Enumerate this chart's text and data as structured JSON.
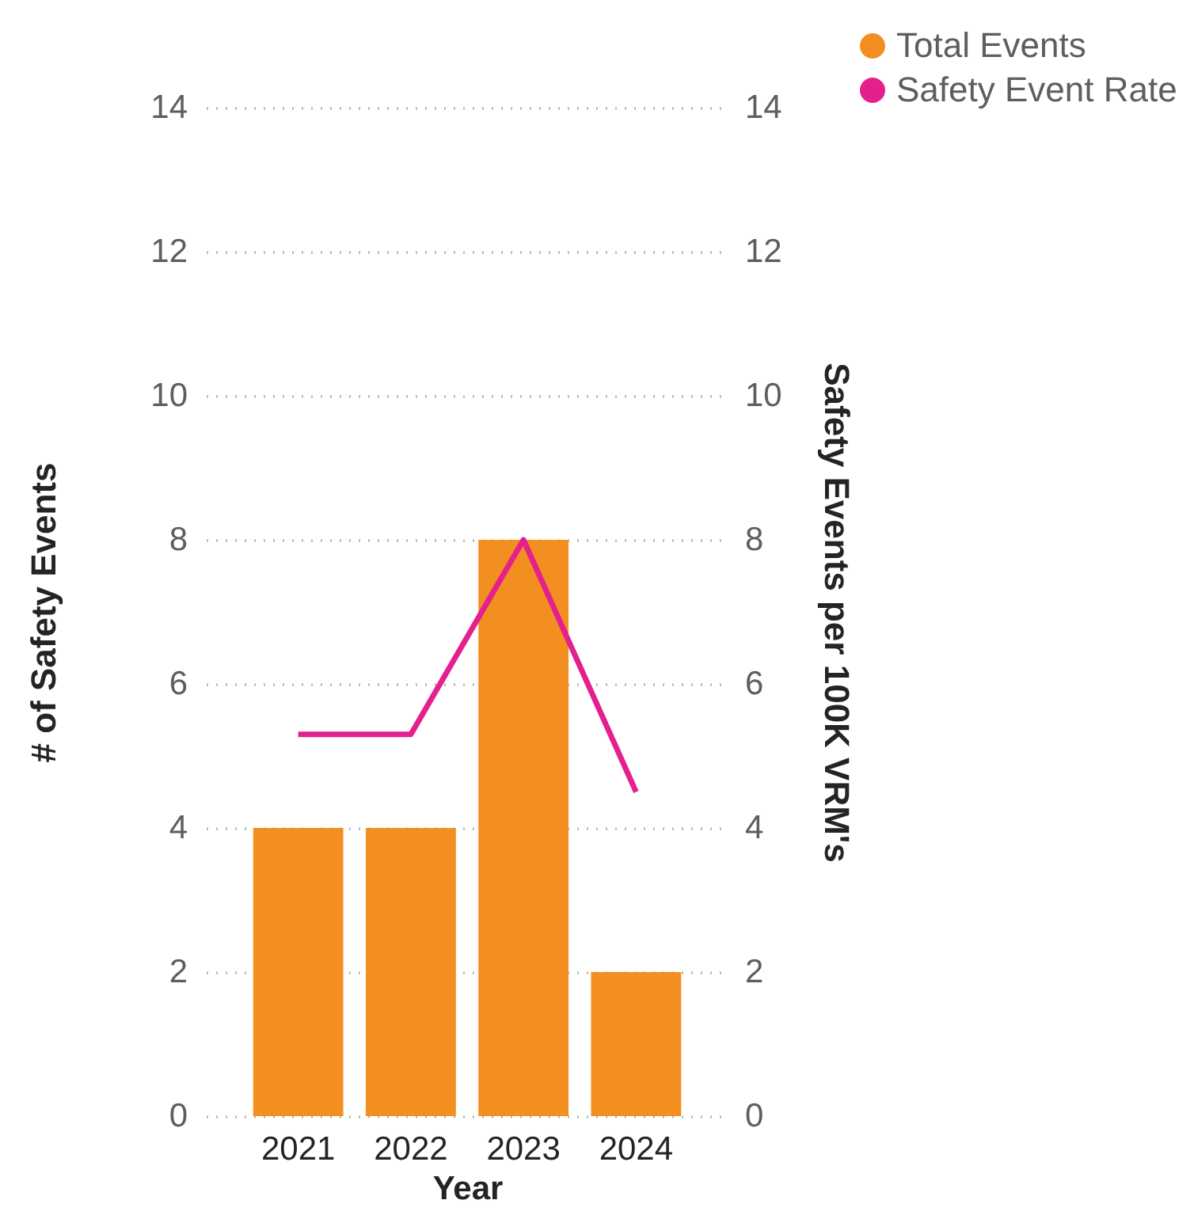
{
  "chart_data": {
    "type": "bar",
    "xlabel": "Year",
    "ylabel": "# of Safety Events",
    "y2label": "Safety Events per 100K VRM's",
    "categories": [
      "2021",
      "2022",
      "2023",
      "2024"
    ],
    "series": [
      {
        "name": "Total Events",
        "color": "#f28f20",
        "values": [
          4,
          4,
          8,
          2
        ]
      },
      {
        "name": "Safety Event Rate",
        "type": "line",
        "axis": "y2",
        "color": "#e4208f",
        "values": [
          5.3,
          5.3,
          8.0,
          4.5
        ]
      }
    ],
    "ylim": [
      0,
      14
    ],
    "yticks": [
      0,
      2,
      4,
      6,
      8,
      10,
      12,
      14
    ],
    "y2lim": [
      0,
      14
    ],
    "y2ticks": [
      0,
      2,
      4,
      6,
      8,
      10,
      12,
      14
    ],
    "grid": "y",
    "legend": "top right"
  }
}
